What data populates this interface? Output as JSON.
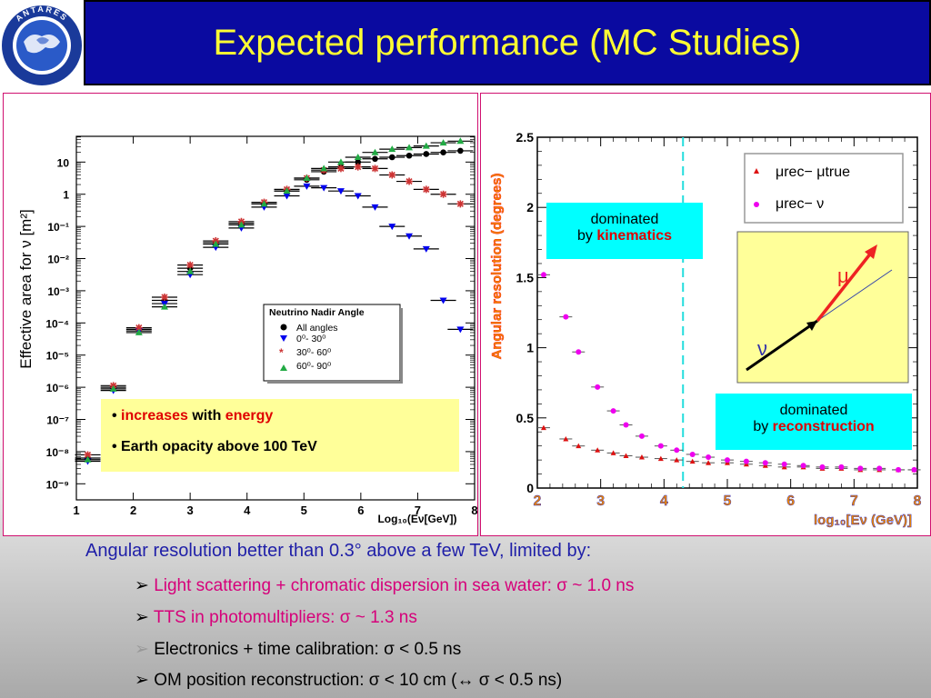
{
  "header": {
    "title": "Expected performance (MC Studies)",
    "logo_text": "ANTARES"
  },
  "left_chart": {
    "ylabel": "Effective area for ν [m²]",
    "xlabel": "Log₁₀(Eν[GeV])",
    "x_ticks": [
      "1",
      "2",
      "3",
      "4",
      "5",
      "6",
      "7",
      "8"
    ],
    "y_ticks": [
      "10",
      "1",
      "10⁻¹",
      "10⁻²",
      "10⁻³",
      "10⁻⁴",
      "10⁻⁵",
      "10⁻⁶",
      "10⁻⁷",
      "10⁻⁸",
      "10⁻⁹"
    ],
    "legend": {
      "title": "Neutrino Nadir Angle",
      "entries": [
        "All angles",
        "0⁰- 30⁰",
        "30⁰- 60⁰",
        "60⁰- 90⁰"
      ]
    },
    "notes": {
      "increases": "increases",
      "with": "with",
      "energy": "energy",
      "opacity": "Earth opacity above 100 TeV"
    }
  },
  "right_chart": {
    "ylabel": "Angular resolution (degrees)",
    "xlabel": "log₁₀[Eν (GeV)]",
    "x_ticks": [
      "2",
      "3",
      "4",
      "5",
      "6",
      "7",
      "8"
    ],
    "y_ticks": [
      "0",
      "0.5",
      "1",
      "1.5",
      "2",
      "2.5"
    ],
    "legend": {
      "entry1": "μrec− μtrue",
      "entry2": "μrec− ν"
    },
    "box_kinematics": {
      "line1": "dominated",
      "by": "by",
      "word": "kinematics"
    },
    "box_reconstruction": {
      "line1": "dominated",
      "by": "by",
      "word": "reconstruction"
    },
    "diagram": {
      "mu": "μ",
      "nu": "ν"
    }
  },
  "chart_data": [
    {
      "type": "scatter",
      "xlabel": "Log10(Eν[GeV])",
      "ylabel": "Effective area for ν [m2]",
      "xlim": [
        1,
        8
      ],
      "ylim_log10": [
        -9.5,
        1.8
      ],
      "x": [
        1.2,
        1.65,
        2.1,
        2.55,
        3.0,
        3.45,
        3.9,
        4.3,
        4.7,
        5.05,
        5.35,
        5.65,
        5.95,
        6.25,
        6.55,
        6.85,
        7.15,
        7.45,
        7.75
      ],
      "series": [
        {
          "name": "All angles",
          "color": "#000000",
          "marker": "circle",
          "log10_values": [
            -8.2,
            -6.0,
            -4.2,
            -3.3,
            -2.3,
            -1.5,
            -0.9,
            -0.3,
            0.1,
            0.45,
            0.7,
            0.85,
            1.0,
            1.1,
            1.15,
            1.2,
            1.25,
            1.3,
            1.35
          ]
        },
        {
          "name": "0⁰- 30⁰",
          "color": "#0000ee",
          "marker": "triangle-down",
          "log10_values": [
            -8.3,
            -6.1,
            -4.25,
            -3.4,
            -2.5,
            -1.65,
            -1.05,
            -0.4,
            -0.05,
            0.25,
            0.2,
            0.1,
            -0.05,
            -0.4,
            -1.0,
            -1.3,
            -1.7,
            -3.3,
            -4.2
          ]
        },
        {
          "name": "30⁰- 60⁰",
          "color": "#cc3333",
          "marker": "star",
          "log10_values": [
            -8.1,
            -5.95,
            -4.15,
            -3.2,
            -2.2,
            -1.45,
            -0.85,
            -0.25,
            0.15,
            0.5,
            0.75,
            0.8,
            0.85,
            0.8,
            0.6,
            0.4,
            0.15,
            0.0,
            -0.3
          ]
        },
        {
          "name": "60⁰- 90⁰",
          "color": "#22aa44",
          "marker": "triangle-up",
          "log10_values": [
            -8.25,
            -6.05,
            -4.3,
            -3.5,
            -2.4,
            -1.55,
            -0.95,
            -0.3,
            0.1,
            0.5,
            0.8,
            1.0,
            1.15,
            1.3,
            1.4,
            1.45,
            1.5,
            1.6,
            1.65
          ]
        }
      ]
    },
    {
      "type": "scatter",
      "xlabel": "log10[Eν (GeV)]",
      "ylabel": "Angular resolution (degrees)",
      "xlim": [
        2,
        8
      ],
      "ylim": [
        0,
        2.5
      ],
      "x": [
        2.1,
        2.45,
        2.65,
        2.95,
        3.2,
        3.4,
        3.65,
        3.95,
        4.2,
        4.45,
        4.7,
        5.0,
        5.3,
        5.6,
        5.9,
        6.2,
        6.5,
        6.8,
        7.1,
        7.4,
        7.7,
        7.95
      ],
      "series": [
        {
          "name": "μrec− μtrue",
          "color": "#dd1111",
          "marker": "triangle-up",
          "values": [
            0.43,
            0.35,
            0.3,
            0.27,
            0.25,
            0.23,
            0.22,
            0.21,
            0.2,
            0.19,
            0.18,
            0.18,
            0.17,
            0.16,
            0.15,
            0.15,
            0.14,
            0.14,
            0.13,
            0.13,
            0.13,
            0.13
          ]
        },
        {
          "name": "μrec− ν",
          "color": "#ee00ee",
          "marker": "circle",
          "values": [
            1.52,
            1.22,
            0.97,
            0.72,
            0.55,
            0.45,
            0.37,
            0.3,
            0.27,
            0.24,
            0.22,
            0.2,
            0.19,
            0.18,
            0.17,
            0.16,
            0.15,
            0.15,
            0.14,
            0.14,
            0.13,
            0.13
          ]
        }
      ],
      "reference_line_x": 4.3
    }
  ],
  "bottom": {
    "main": "Angular resolution better than 0.3° above a few TeV, limited by:",
    "bullets": [
      "Light scattering + chromatic dispersion in sea water: σ ~ 1.0 ns",
      "TTS in photomultipliers: σ ~ 1.3 ns",
      "Electronics + time calibration: σ < 0.5 ns",
      "OM position reconstruction: σ < 10 cm (↔ σ < 0.5 ns)"
    ],
    "arrow": "➢"
  },
  "colors": {
    "title_bg": "#0a0aa0",
    "title_fg": "#ffff33",
    "accent_red": "#e00000",
    "magenta": "#d6007a",
    "navy_text": "#1f1fa8",
    "cyan": "#00ffff",
    "note_yellow": "#ffff99"
  }
}
